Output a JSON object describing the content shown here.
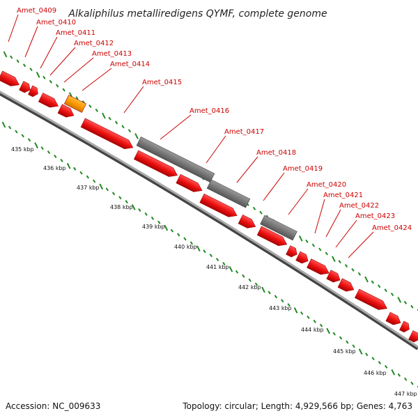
{
  "header": {
    "title": "Alkaliphilus metalliredigens QYMF, complete genome"
  },
  "genes": [
    "Amet_0409",
    "Amet_0410",
    "Amet_0411",
    "Amet_0412",
    "Amet_0413",
    "Amet_0414",
    "Amet_0415",
    "Amet_0416",
    "Amet_0417",
    "Amet_0418",
    "Amet_0419",
    "Amet_0420",
    "Amet_0421",
    "Amet_0422",
    "Amet_0423",
    "Amet_0424"
  ],
  "scale_ticks": [
    "435 kbp",
    "436 kbp",
    "437 kbp",
    "438 kbp",
    "439 kbp",
    "440 kbp",
    "441 kbp",
    "442 kbp",
    "443 kbp",
    "444 kbp",
    "445 kbp",
    "446 kbp",
    "447 kbp"
  ],
  "footer": {
    "accession": "Accession: NC_009633",
    "summary": "Topology: circular; Length: 4,929,566 bp; Genes: 4,763"
  },
  "colors": {
    "cds": "#ee1111",
    "rna": "#ff9900",
    "pseudo": "#777777",
    "backbone": "#888888",
    "ticks": "#228822",
    "label": "#cc0000"
  }
}
